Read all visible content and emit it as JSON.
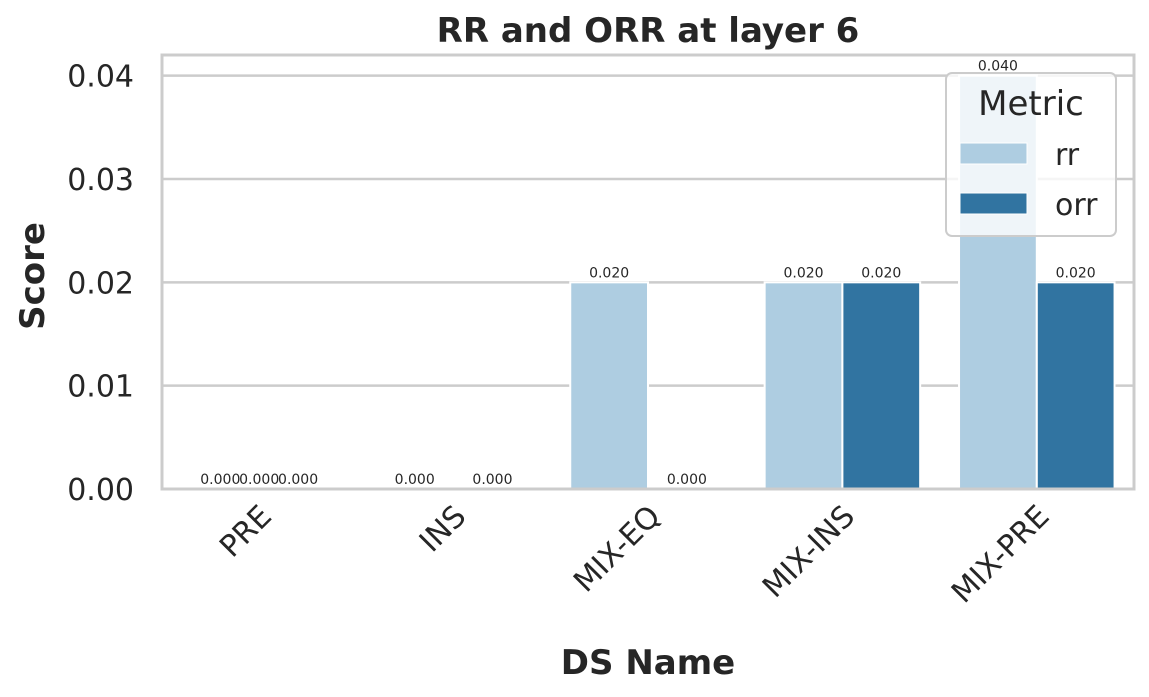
{
  "chart_data": {
    "type": "bar",
    "title": "RR and ORR at layer 6",
    "xlabel": "DS Name",
    "ylabel": "Score",
    "categories": [
      "PRE",
      "INS",
      "MIX-EQ",
      "MIX-INS",
      "MIX-PRE"
    ],
    "series": [
      {
        "name": "rr",
        "color": "#aecde1",
        "values": [
          0.0,
          0.0,
          0.02,
          0.02,
          0.04
        ],
        "labels": [
          "0.000",
          "0.000",
          "0.020",
          "0.020",
          "0.040"
        ]
      },
      {
        "name": "orr",
        "color": "#3174a1",
        "values": [
          0.0,
          0.0,
          0.0,
          0.02,
          0.02
        ],
        "labels": [
          "0.000",
          "0.000",
          "0.000",
          "0.020",
          "0.020"
        ]
      }
    ],
    "extra_labels": [
      {
        "category": "PRE",
        "text": "0.000"
      }
    ],
    "yticks": [
      0.0,
      0.01,
      0.02,
      0.03,
      0.04
    ],
    "ytick_labels": [
      "0.00",
      "0.01",
      "0.02",
      "0.03",
      "0.04"
    ],
    "ylim": [
      0,
      0.042
    ],
    "grid": "horizontal",
    "legend": {
      "title": "Metric",
      "placement": "top-right"
    }
  }
}
